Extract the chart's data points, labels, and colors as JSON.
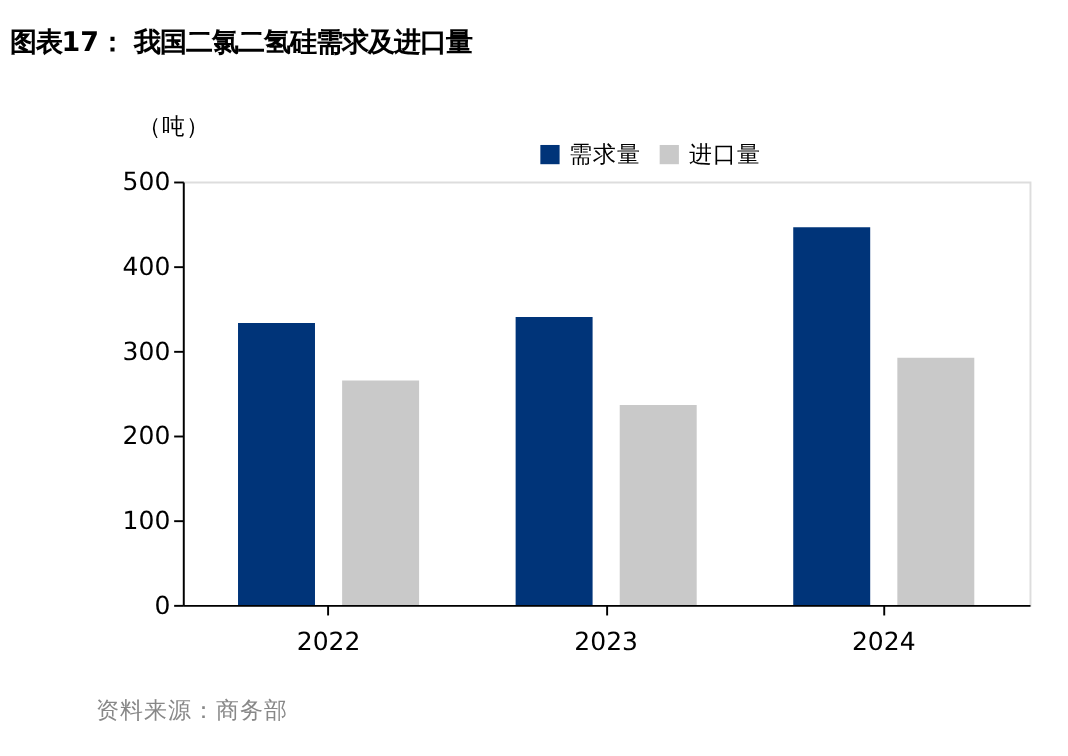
{
  "chart_data": {
    "type": "bar",
    "title": "图表17：  我国二氯二氢硅需求及进口量",
    "ylabel": "（吨）",
    "categories": [
      "2022",
      "2023",
      "2024"
    ],
    "series": [
      {
        "name": "需求量",
        "color": "#003479",
        "values": [
          333,
          340,
          446
        ]
      },
      {
        "name": "进口量",
        "color": "#c9c9c9",
        "values": [
          265,
          236,
          292
        ]
      }
    ],
    "ylim": [
      0,
      500
    ],
    "yticks": [
      0,
      100,
      200,
      300,
      400,
      500
    ],
    "grid": false,
    "legend": "top",
    "annotations": [
      "资料来源：商务部"
    ]
  }
}
